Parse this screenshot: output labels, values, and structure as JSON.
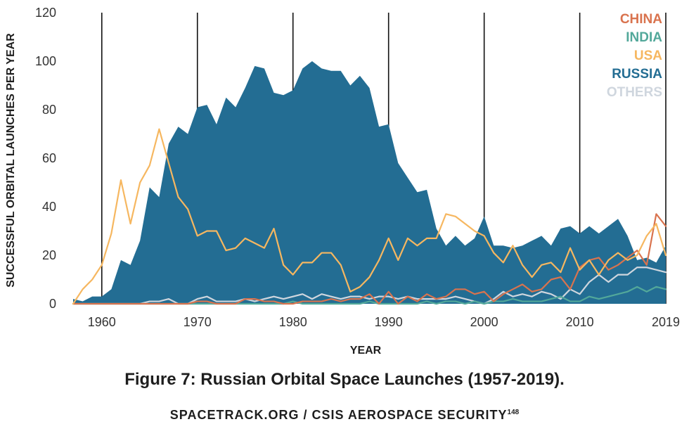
{
  "chart_data": {
    "type": "area",
    "xlabel": "YEAR",
    "ylabel": "SUCCESSFUL ORBITAL LAUNCHES PER YEAR",
    "xlim": [
      1957,
      2019
    ],
    "ylim": [
      0,
      120
    ],
    "x_ticks": [
      1960,
      1970,
      1980,
      1990,
      2000,
      2010,
      2019
    ],
    "x_tick_labels": [
      "1960",
      "1970",
      "1980",
      "1990",
      "2000",
      "2010",
      "2019"
    ],
    "y_ticks": [
      0,
      20,
      40,
      60,
      80,
      100,
      120
    ],
    "y_tick_labels": [
      "0",
      "20",
      "40",
      "60",
      "80",
      "100",
      "120"
    ],
    "vertical_lines": [
      1960,
      1970,
      1980,
      1990,
      2000,
      2010,
      2019
    ],
    "legend_position": "top-right",
    "x": [
      1957,
      1958,
      1959,
      1960,
      1961,
      1962,
      1963,
      1964,
      1965,
      1966,
      1967,
      1968,
      1969,
      1970,
      1971,
      1972,
      1973,
      1974,
      1975,
      1976,
      1977,
      1978,
      1979,
      1980,
      1981,
      1982,
      1983,
      1984,
      1985,
      1986,
      1987,
      1988,
      1989,
      1990,
      1991,
      1992,
      1993,
      1994,
      1995,
      1996,
      1997,
      1998,
      1999,
      2000,
      2001,
      2002,
      2003,
      2004,
      2005,
      2006,
      2007,
      2008,
      2009,
      2010,
      2011,
      2012,
      2013,
      2014,
      2015,
      2016,
      2017,
      2018,
      2019
    ],
    "series": [
      {
        "name": "RUSSIA",
        "style": "area",
        "color": "#236d93",
        "values": [
          2,
          1,
          3,
          3,
          6,
          18,
          16,
          26,
          48,
          44,
          66,
          73,
          70,
          81,
          82,
          74,
          85,
          81,
          89,
          98,
          97,
          87,
          86,
          88,
          97,
          100,
          97,
          96,
          96,
          90,
          94,
          89,
          73,
          74,
          58,
          52,
          46,
          47,
          31,
          24,
          28,
          24,
          27,
          36,
          24,
          24,
          23,
          24,
          26,
          28,
          24,
          31,
          32,
          29,
          32,
          29,
          32,
          35,
          28,
          18,
          19,
          17,
          24
        ]
      },
      {
        "name": "USA",
        "style": "line",
        "color": "#f6b760",
        "values": [
          0,
          6,
          10,
          16,
          29,
          51,
          33,
          50,
          57,
          72,
          58,
          44,
          39,
          28,
          30,
          30,
          22,
          23,
          27,
          25,
          23,
          31,
          16,
          12,
          17,
          17,
          21,
          21,
          16,
          5,
          7,
          11,
          18,
          27,
          18,
          27,
          24,
          27,
          27,
          37,
          36,
          33,
          30,
          28,
          21,
          17,
          24,
          16,
          11,
          16,
          17,
          13,
          23,
          14,
          18,
          12,
          18,
          21,
          18,
          20,
          28,
          33,
          20
        ]
      },
      {
        "name": "CHINA",
        "style": "line",
        "color": "#d9734e",
        "values": [
          0,
          0,
          0,
          0,
          0,
          0,
          0,
          0,
          0,
          0,
          0,
          0,
          0,
          1,
          1,
          0,
          0,
          0,
          2,
          2,
          1,
          1,
          0,
          0,
          1,
          1,
          1,
          2,
          1,
          2,
          2,
          4,
          0,
          5,
          0,
          3,
          1,
          4,
          2,
          3,
          6,
          6,
          4,
          5,
          1,
          4,
          6,
          8,
          5,
          6,
          10,
          11,
          6,
          15,
          18,
          19,
          14,
          16,
          19,
          22,
          16,
          37,
          32
        ]
      },
      {
        "name": "INDIA",
        "style": "line",
        "color": "#52a89a",
        "values": [
          0,
          0,
          0,
          0,
          0,
          0,
          0,
          0,
          0,
          0,
          0,
          0,
          0,
          0,
          0,
          0,
          0,
          0,
          0,
          0,
          0,
          0,
          0,
          1,
          0,
          0,
          0,
          0,
          0,
          0,
          0,
          1,
          0,
          0,
          0,
          0,
          0,
          1,
          0,
          1,
          1,
          0,
          1,
          0,
          1,
          1,
          2,
          1,
          1,
          1,
          2,
          3,
          1,
          1,
          3,
          2,
          3,
          4,
          5,
          7,
          5,
          7,
          6
        ]
      },
      {
        "name": "OTHERS",
        "style": "line",
        "color": "#cfd6de",
        "values": [
          0,
          0,
          0,
          0,
          0,
          0,
          0,
          0,
          1,
          1,
          2,
          0,
          0,
          2,
          3,
          1,
          1,
          1,
          2,
          1,
          2,
          3,
          2,
          3,
          4,
          2,
          4,
          3,
          2,
          3,
          3,
          2,
          3,
          3,
          2,
          3,
          2,
          2,
          2,
          2,
          3,
          2,
          1,
          0,
          2,
          5,
          3,
          4,
          3,
          5,
          4,
          2,
          6,
          4,
          9,
          12,
          9,
          12,
          12,
          15,
          15,
          14,
          13
        ]
      }
    ]
  },
  "legend": {
    "china": "CHINA",
    "india": "INDIA",
    "usa": "USA",
    "russia": "RUSSIA",
    "others": "OTHERS"
  },
  "colors": {
    "china": "#d9734e",
    "india": "#52a89a",
    "usa": "#f6b760",
    "russia": "#236d93",
    "others": "#cfd6de"
  },
  "caption": {
    "figure": "Figure 7: Russian Orbital Space Launches (1957-2019).",
    "source": "SPACETRACK.ORG / CSIS AEROSPACE SECURITY",
    "source_note": "148"
  }
}
